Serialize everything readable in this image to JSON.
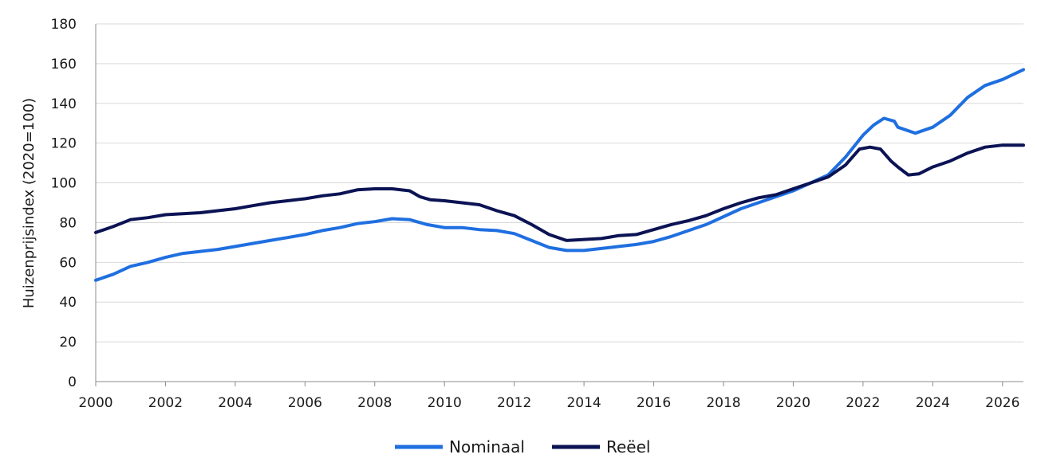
{
  "chart_data": {
    "type": "line",
    "title": "",
    "xlabel": "",
    "ylabel": "Huizenprijsindex (2020=100)",
    "xlim": [
      2000,
      2026.6
    ],
    "ylim": [
      0,
      180
    ],
    "x_ticks": [
      "2000",
      "2002",
      "2004",
      "2006",
      "2008",
      "2010",
      "2012",
      "2014",
      "2016",
      "2018",
      "2020",
      "2022",
      "2024",
      "2026"
    ],
    "y_ticks": [
      "0",
      "20",
      "40",
      "60",
      "80",
      "100",
      "120",
      "140",
      "160",
      "180"
    ],
    "grid": "horizontal",
    "legend": "bottom-center",
    "series": [
      {
        "name": "Nominaal",
        "color": "#1f6fe0",
        "points": [
          [
            2000,
            51
          ],
          [
            2000.5,
            54
          ],
          [
            2001,
            58
          ],
          [
            2001.5,
            60
          ],
          [
            2002,
            62.5
          ],
          [
            2002.5,
            64.5
          ],
          [
            2003,
            65.5
          ],
          [
            2003.5,
            66.5
          ],
          [
            2004,
            68
          ],
          [
            2004.5,
            69.5
          ],
          [
            2005,
            71
          ],
          [
            2005.5,
            72.5
          ],
          [
            2006,
            74
          ],
          [
            2006.5,
            76
          ],
          [
            2007,
            77.5
          ],
          [
            2007.5,
            79.5
          ],
          [
            2008,
            80.5
          ],
          [
            2008.5,
            82
          ],
          [
            2009,
            81.5
          ],
          [
            2009.5,
            79
          ],
          [
            2010,
            77.5
          ],
          [
            2010.5,
            77.5
          ],
          [
            2011,
            76.5
          ],
          [
            2011.5,
            76
          ],
          [
            2012,
            74.5
          ],
          [
            2012.5,
            71
          ],
          [
            2013,
            67.5
          ],
          [
            2013.5,
            66
          ],
          [
            2014,
            66
          ],
          [
            2014.5,
            67
          ],
          [
            2015,
            68
          ],
          [
            2015.5,
            69
          ],
          [
            2016,
            70.5
          ],
          [
            2016.5,
            73
          ],
          [
            2017,
            76
          ],
          [
            2017.5,
            79
          ],
          [
            2018,
            83
          ],
          [
            2018.5,
            87
          ],
          [
            2019,
            90
          ],
          [
            2019.5,
            93
          ],
          [
            2020,
            96
          ],
          [
            2020.5,
            100
          ],
          [
            2021,
            104
          ],
          [
            2021.5,
            113
          ],
          [
            2022,
            124
          ],
          [
            2022.3,
            129
          ],
          [
            2022.6,
            132.5
          ],
          [
            2022.9,
            131
          ],
          [
            2023,
            128
          ],
          [
            2023.5,
            125
          ],
          [
            2024,
            128
          ],
          [
            2024.5,
            134
          ],
          [
            2025,
            143
          ],
          [
            2025.5,
            149
          ],
          [
            2026,
            152
          ],
          [
            2026.6,
            157
          ]
        ]
      },
      {
        "name": "Reëel",
        "color": "#0b1354",
        "points": [
          [
            2000,
            75
          ],
          [
            2000.5,
            78
          ],
          [
            2001,
            81.5
          ],
          [
            2001.5,
            82.5
          ],
          [
            2002,
            84
          ],
          [
            2002.5,
            84.5
          ],
          [
            2003,
            85
          ],
          [
            2003.5,
            86
          ],
          [
            2004,
            87
          ],
          [
            2004.5,
            88.5
          ],
          [
            2005,
            90
          ],
          [
            2005.5,
            91
          ],
          [
            2006,
            92
          ],
          [
            2006.5,
            93.5
          ],
          [
            2007,
            94.5
          ],
          [
            2007.5,
            96.5
          ],
          [
            2008,
            97
          ],
          [
            2008.5,
            97
          ],
          [
            2009,
            96
          ],
          [
            2009.3,
            93
          ],
          [
            2009.6,
            91.5
          ],
          [
            2010,
            91
          ],
          [
            2010.5,
            90
          ],
          [
            2011,
            89
          ],
          [
            2011.5,
            86
          ],
          [
            2012,
            83.5
          ],
          [
            2012.5,
            79
          ],
          [
            2013,
            74
          ],
          [
            2013.5,
            71
          ],
          [
            2014,
            71.5
          ],
          [
            2014.5,
            72
          ],
          [
            2015,
            73.5
          ],
          [
            2015.5,
            74
          ],
          [
            2016,
            76.5
          ],
          [
            2016.5,
            79
          ],
          [
            2017,
            81
          ],
          [
            2017.5,
            83.5
          ],
          [
            2018,
            87
          ],
          [
            2018.5,
            90
          ],
          [
            2019,
            92.5
          ],
          [
            2019.5,
            94
          ],
          [
            2020,
            97
          ],
          [
            2020.5,
            100
          ],
          [
            2021,
            103
          ],
          [
            2021.5,
            109
          ],
          [
            2021.9,
            117
          ],
          [
            2022.2,
            118
          ],
          [
            2022.5,
            117
          ],
          [
            2022.8,
            111
          ],
          [
            2023,
            108
          ],
          [
            2023.3,
            104
          ],
          [
            2023.6,
            104.5
          ],
          [
            2024,
            108
          ],
          [
            2024.5,
            111
          ],
          [
            2025,
            115
          ],
          [
            2025.5,
            118
          ],
          [
            2026,
            119
          ],
          [
            2026.6,
            119
          ]
        ]
      }
    ]
  }
}
